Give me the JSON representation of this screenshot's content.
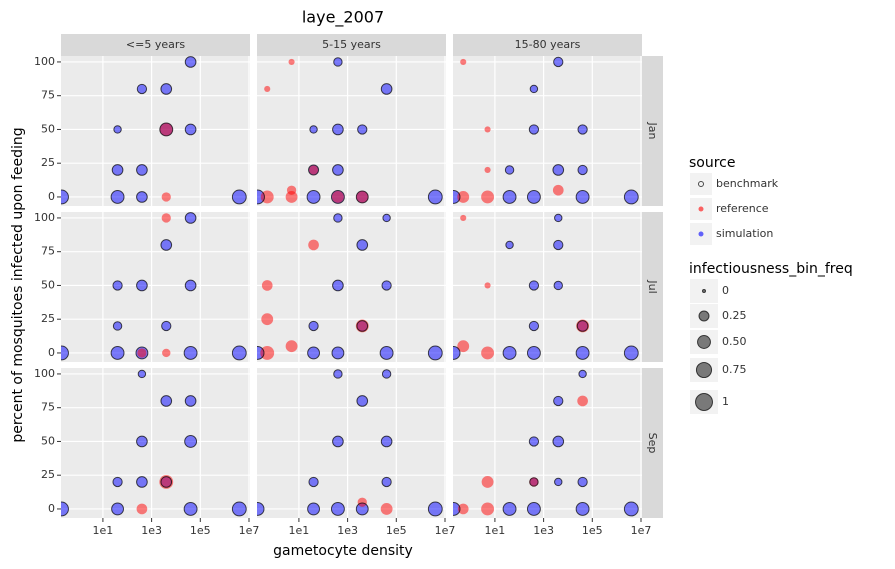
{
  "chart_data": {
    "type": "scatter",
    "title": "laye_2007",
    "x_label": "gametocyte density",
    "y_label": "percent of mosquitoes infected upon feeding",
    "log_x": true,
    "grid": true,
    "xlim": [
      0.19,
      11000000
    ],
    "xticks": [
      {
        "value": 10,
        "label": "1e1"
      },
      {
        "value": 1000,
        "label": "1e3"
      },
      {
        "value": 100000,
        "label": "1e5"
      },
      {
        "value": 10000000,
        "label": "1e7"
      }
    ],
    "ylim": [
      -6.7,
      104.4
    ],
    "yticks": [
      0,
      25,
      50,
      75,
      100
    ],
    "column_labels": [
      "<=5 years",
      "5-15 years",
      "15-80 years"
    ],
    "row_labels": [
      "Jan",
      "Jul",
      "Sep"
    ],
    "color_legend_title": "source",
    "size_legend_title": "infectiousness_bin_freq",
    "size_legend": [
      0,
      0.25,
      {
        "value": 0.5,
        "label": "0.50"
      },
      0.75,
      1
    ],
    "series": [
      {
        "name": "benchmark",
        "color": "#000000"
      },
      {
        "name": "reference",
        "color": "#ff0000"
      },
      {
        "name": "simulation",
        "color": "#0000ff"
      }
    ],
    "panels": [
      {
        "series": [
          {
            "x": [
              0.2,
              40,
              40,
              40,
              400,
              400,
              400,
              4000,
              4000,
              40000,
              40000,
              4000000
            ],
            "y": [
              0,
              0,
              20,
              50,
              0,
              20,
              80,
              50,
              80,
              50,
              100,
              0
            ],
            "size": [
              0.6,
              0.5,
              0.3,
              0.1,
              0.3,
              0.3,
              0.2,
              0.5,
              0.3,
              0.3,
              0.3,
              0.6
            ]
          },
          {
            "x": [
              4000,
              4000
            ],
            "y": [
              50,
              0
            ],
            "size": [
              0.5,
              0.2
            ]
          },
          {
            "x": [
              0.2,
              40,
              40,
              40,
              400,
              400,
              400,
              4000,
              4000,
              40000,
              40000,
              4000000
            ],
            "y": [
              0,
              0,
              20,
              50,
              0,
              20,
              80,
              50,
              80,
              50,
              100,
              0
            ],
            "size": [
              0.6,
              0.5,
              0.3,
              0.1,
              0.3,
              0.3,
              0.2,
              0.5,
              0.3,
              0.3,
              0.3,
              0.6
            ]
          }
        ]
      },
      {
        "series": [
          {
            "x": [
              0.2,
              40,
              40,
              400,
              400,
              400,
              4000,
              4000,
              40000,
              4000000,
              40,
              400
            ],
            "y": [
              0,
              0,
              20,
              0,
              20,
              50,
              0,
              50,
              80,
              0,
              50,
              100
            ],
            "size": [
              0.6,
              0.5,
              0.25,
              0.5,
              0.3,
              0.3,
              0.4,
              0.2,
              0.3,
              0.6,
              0.1,
              0.15
            ]
          },
          {
            "x": [
              0.5,
              5,
              5,
              40,
              0.5,
              5,
              400,
              4000
            ],
            "y": [
              0,
              0,
              5,
              20,
              80,
              100,
              0,
              0
            ],
            "size": [
              0.5,
              0.4,
              0.2,
              0.2,
              0.05,
              0.05,
              0.4,
              0.4
            ]
          },
          {
            "x": [
              0.2,
              40,
              40,
              400,
              400,
              400,
              4000,
              4000,
              40000,
              4000000,
              40,
              400
            ],
            "y": [
              0,
              0,
              20,
              0,
              20,
              50,
              0,
              50,
              80,
              0,
              50,
              100
            ],
            "size": [
              0.6,
              0.5,
              0.25,
              0.5,
              0.3,
              0.3,
              0.4,
              0.2,
              0.3,
              0.6,
              0.1,
              0.15
            ]
          }
        ]
      },
      {
        "series": [
          {
            "x": [
              0.2,
              40,
              40,
              400,
              400,
              4000,
              4000,
              40000,
              40000,
              4000000,
              400,
              40000
            ],
            "y": [
              0,
              0,
              20,
              0,
              50,
              20,
              100,
              0,
              50,
              0,
              80,
              20
            ],
            "size": [
              0.5,
              0.5,
              0.15,
              0.5,
              0.2,
              0.3,
              0.2,
              0.5,
              0.2,
              0.6,
              0.1,
              0.2
            ]
          },
          {
            "x": [
              0.5,
              5,
              0.5,
              5,
              4000,
              5
            ],
            "y": [
              0,
              0,
              100,
              50,
              5,
              20
            ],
            "size": [
              0.4,
              0.5,
              0.05,
              0.05,
              0.3,
              0.05
            ]
          },
          {
            "x": [
              0.2,
              40,
              40,
              400,
              400,
              4000,
              4000,
              40000,
              40000,
              4000000,
              400,
              40000
            ],
            "y": [
              0,
              0,
              20,
              0,
              50,
              20,
              100,
              0,
              50,
              0,
              80,
              20
            ],
            "size": [
              0.5,
              0.5,
              0.15,
              0.5,
              0.2,
              0.3,
              0.2,
              0.5,
              0.2,
              0.6,
              0.1,
              0.2
            ]
          }
        ]
      },
      {
        "series": [
          {
            "x": [
              0.2,
              40,
              40,
              400,
              400,
              4000,
              4000,
              40000,
              40000,
              4000000,
              40,
              40000
            ],
            "y": [
              0,
              0,
              20,
              0,
              50,
              80,
              20,
              0,
              50,
              0,
              50,
              100
            ],
            "size": [
              0.6,
              0.5,
              0.15,
              0.4,
              0.3,
              0.3,
              0.2,
              0.5,
              0.3,
              0.6,
              0.2,
              0.3
            ]
          },
          {
            "x": [
              4000,
              400,
              4000
            ],
            "y": [
              100,
              0,
              0
            ],
            "size": [
              0.2,
              0.2,
              0.15
            ]
          },
          {
            "x": [
              0.2,
              40,
              40,
              400,
              400,
              4000,
              4000,
              40000,
              40000,
              4000000,
              40,
              40000
            ],
            "y": [
              0,
              0,
              20,
              0,
              50,
              80,
              20,
              0,
              50,
              0,
              50,
              100
            ],
            "size": [
              0.6,
              0.5,
              0.15,
              0.4,
              0.3,
              0.3,
              0.2,
              0.5,
              0.3,
              0.6,
              0.2,
              0.3
            ]
          }
        ]
      },
      {
        "series": [
          {
            "x": [
              0.2,
              40,
              40,
              400,
              400,
              4000,
              4000,
              40000,
              40000,
              4000000,
              400,
              40000
            ],
            "y": [
              0,
              0,
              20,
              0,
              50,
              20,
              80,
              0,
              50,
              0,
              100,
              100
            ],
            "size": [
              0.5,
              0.4,
              0.2,
              0.4,
              0.3,
              0.3,
              0.3,
              0.5,
              0.2,
              0.6,
              0.15,
              0.1
            ]
          },
          {
            "x": [
              0.5,
              5,
              0.5,
              0.5,
              40,
              4000
            ],
            "y": [
              0,
              5,
              25,
              50,
              80,
              20
            ],
            "size": [
              0.6,
              0.4,
              0.4,
              0.3,
              0.3,
              0.5
            ]
          },
          {
            "x": [
              0.2,
              40,
              40,
              400,
              400,
              4000,
              4000,
              40000,
              40000,
              4000000,
              400,
              40000
            ],
            "y": [
              0,
              0,
              20,
              0,
              50,
              20,
              80,
              0,
              50,
              0,
              100,
              100
            ],
            "size": [
              0.5,
              0.4,
              0.2,
              0.4,
              0.3,
              0.3,
              0.3,
              0.5,
              0.2,
              0.6,
              0.15,
              0.1
            ]
          }
        ]
      },
      {
        "series": [
          {
            "x": [
              0.2,
              40,
              400,
              400,
              400,
              4000,
              4000,
              40000,
              40000,
              4000000,
              40,
              4000
            ],
            "y": [
              0,
              0,
              0,
              20,
              50,
              50,
              80,
              0,
              20,
              0,
              80,
              100
            ],
            "size": [
              0.5,
              0.5,
              0.5,
              0.2,
              0.2,
              0.15,
              0.2,
              0.5,
              0.3,
              0.6,
              0.1,
              0.1
            ]
          },
          {
            "x": [
              0.5,
              5,
              40000,
              0.5,
              5
            ],
            "y": [
              5,
              0,
              20,
              100,
              50
            ],
            "size": [
              0.4,
              0.5,
              0.5,
              0.05,
              0.05
            ]
          },
          {
            "x": [
              0.2,
              40,
              400,
              400,
              400,
              4000,
              4000,
              40000,
              40000,
              4000000,
              40,
              4000
            ],
            "y": [
              0,
              0,
              0,
              20,
              50,
              50,
              80,
              0,
              20,
              0,
              80,
              100
            ],
            "size": [
              0.5,
              0.5,
              0.5,
              0.2,
              0.2,
              0.15,
              0.2,
              0.5,
              0.3,
              0.6,
              0.1,
              0.1
            ]
          }
        ]
      },
      {
        "series": [
          {
            "x": [
              0.2,
              40,
              40,
              400,
              400,
              4000,
              4000,
              40000,
              40000,
              4000000,
              400,
              40000
            ],
            "y": [
              0,
              0,
              20,
              50,
              20,
              20,
              80,
              0,
              50,
              0,
              100,
              80
            ],
            "size": [
              0.6,
              0.4,
              0.2,
              0.3,
              0.3,
              0.3,
              0.3,
              0.5,
              0.4,
              0.6,
              0.1,
              0.3
            ]
          },
          {
            "x": [
              4000,
              400
            ],
            "y": [
              20,
              0
            ],
            "size": [
              0.6,
              0.3
            ]
          },
          {
            "x": [
              0.2,
              40,
              40,
              400,
              400,
              4000,
              4000,
              40000,
              40000,
              4000000,
              400,
              40000
            ],
            "y": [
              0,
              0,
              20,
              50,
              20,
              20,
              80,
              0,
              50,
              0,
              100,
              80
            ],
            "size": [
              0.6,
              0.4,
              0.2,
              0.3,
              0.3,
              0.3,
              0.3,
              0.5,
              0.4,
              0.6,
              0.1,
              0.3
            ]
          }
        ]
      },
      {
        "series": [
          {
            "x": [
              0.2,
              40,
              40,
              400,
              400,
              4000,
              4000,
              40000,
              40000,
              4000000,
              400,
              40000
            ],
            "y": [
              0,
              0,
              20,
              0,
              50,
              0,
              80,
              50,
              20,
              0,
              100,
              100
            ],
            "size": [
              0.5,
              0.4,
              0.2,
              0.5,
              0.3,
              0.4,
              0.3,
              0.3,
              0.2,
              0.6,
              0.15,
              0.15
            ]
          },
          {
            "x": [
              4000,
              40000
            ],
            "y": [
              5,
              0
            ],
            "size": [
              0.2,
              0.4
            ]
          },
          {
            "x": [
              0.2,
              40,
              40,
              400,
              400,
              4000,
              4000,
              40000,
              40000,
              4000000,
              400,
              40000
            ],
            "y": [
              0,
              0,
              20,
              0,
              50,
              0,
              80,
              50,
              20,
              0,
              100,
              100
            ],
            "size": [
              0.5,
              0.4,
              0.2,
              0.5,
              0.3,
              0.4,
              0.3,
              0.3,
              0.2,
              0.6,
              0.15,
              0.15
            ]
          }
        ]
      },
      {
        "series": [
          {
            "x": [
              0.2,
              40,
              400,
              400,
              4000,
              4000,
              40000,
              40000,
              4000000,
              400,
              4000,
              40000
            ],
            "y": [
              0,
              0,
              0,
              50,
              50,
              80,
              0,
              20,
              0,
              20,
              20,
              100
            ],
            "size": [
              0.5,
              0.5,
              0.5,
              0.2,
              0.3,
              0.2,
              0.5,
              0.2,
              0.6,
              0.15,
              0.1,
              0.1
            ]
          },
          {
            "x": [
              5,
              5,
              400,
              40000,
              0.5
            ],
            "y": [
              20,
              0,
              20,
              80,
              0
            ],
            "size": [
              0.4,
              0.5,
              0.2,
              0.3,
              0.3
            ]
          },
          {
            "x": [
              0.2,
              40,
              400,
              400,
              4000,
              4000,
              40000,
              40000,
              4000000,
              400,
              4000,
              40000
            ],
            "y": [
              0,
              0,
              0,
              50,
              50,
              80,
              0,
              20,
              0,
              20,
              20,
              100
            ],
            "size": [
              0.5,
              0.5,
              0.5,
              0.2,
              0.3,
              0.2,
              0.5,
              0.2,
              0.6,
              0.15,
              0.1,
              0.1
            ]
          }
        ]
      }
    ]
  }
}
